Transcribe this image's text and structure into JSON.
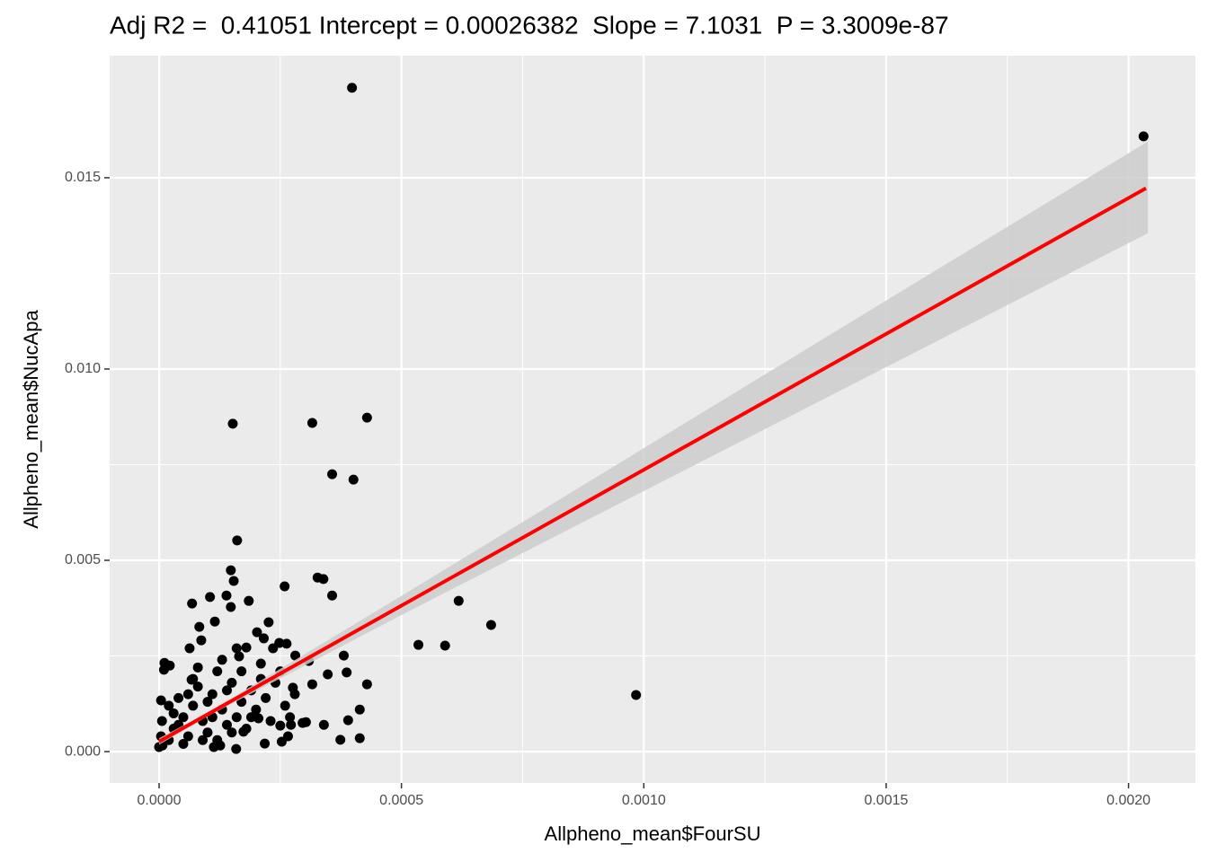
{
  "chart_data": {
    "type": "scatter",
    "title": "Adj R2 =  0.41051 Intercept = 0.00026382  Slope = 7.1031  P = 3.3009e-87",
    "x_label": "Allpheno_mean$FourSU",
    "y_label": "Allpheno_mean$NucApa",
    "xlim": [
      -0.000102,
      0.002138
    ],
    "ylim": [
      -0.00082,
      0.01819
    ],
    "xticks": [
      {
        "value": 0,
        "label": "0.0000"
      },
      {
        "value": 0.0005,
        "label": "0.0005"
      },
      {
        "value": 0.001,
        "label": "0.0010"
      },
      {
        "value": 0.0015,
        "label": "0.0015"
      },
      {
        "value": 0.002,
        "label": "0.0020"
      }
    ],
    "yticks": [
      {
        "value": 0,
        "label": "0.000"
      },
      {
        "value": 0.005,
        "label": "0.005"
      },
      {
        "value": 0.01,
        "label": "0.010"
      },
      {
        "value": 0.015,
        "label": "0.015"
      }
    ],
    "grid": true,
    "color": "#000000",
    "x": [
      0.000398,
      0.002031,
      0.000152,
      0.000316,
      0.000429,
      0.000357,
      0.000401,
      0.000161,
      0.000148,
      0.000154,
      0.000259,
      0.000327,
      0.000339,
      0.000357,
      0.000139,
      0.000185,
      0.000148,
      0.000105,
      6.8e-05,
      0.000618,
      0.000685,
      0.000535,
      0.00059,
      0.000984,
      0.000115,
      0.000226,
      0.000202,
      8.7e-05,
      8.3e-05,
      6.3e-05,
      0.000263,
      0.000248,
      0.000235,
      0.00018,
      0.000165,
      0.000381,
      0.000281,
      0.000309,
      0.000216,
      0.000348,
      0.000387,
      0.000429,
      0.000316,
      0.000276,
      0.000414,
      0.00039,
      0.00034,
      0.000374,
      0.000414,
      0.000303,
      0.000296,
      0.000272,
      0.000253,
      0.000266,
      0.00025,
      0.000218,
      0.000205,
      0.000174,
      0.000159,
      0.000126,
      0.000113,
      1.1e-05,
      2.2e-05,
      1e-05,
      6.7e-05,
      4e-06,
      0,
      7e-06,
      6e-06,
      4e-06,
      3e-05,
      5e-05,
      7e-05,
      9e-05,
      0.00011,
      0.00013,
      0.00015,
      0.00017,
      0.00019,
      0.00021,
      2e-05,
      4e-05,
      6e-05,
      8e-05,
      0.0001,
      0.00012,
      0.00014,
      0.00016,
      0.00018,
      0.0002,
      0.00022,
      0.00024,
      0.00026,
      3e-05,
      5e-05,
      7e-05,
      9e-05,
      0.00011,
      0.00013,
      0.00015,
      0.00017,
      0.00019,
      0.00023,
      0.00025,
      0.00028,
      0.0001,
      6e-05,
      0.00012,
      0.00014,
      8e-05,
      2e-05,
      4e-05,
      0.00016,
      0.00021,
      0.00027
    ],
    "y": [
      0.01735,
      0.01608,
      0.00857,
      0.00859,
      0.00873,
      0.00725,
      0.00711,
      0.00552,
      0.00474,
      0.00446,
      0.00432,
      0.00455,
      0.00451,
      0.00408,
      0.00408,
      0.00394,
      0.00378,
      0.00404,
      0.00387,
      0.00394,
      0.00331,
      0.00279,
      0.00277,
      0.00148,
      0.0034,
      0.00338,
      0.00312,
      0.00291,
      0.00326,
      0.0027,
      0.00282,
      0.00284,
      0.0027,
      0.00272,
      0.00249,
      0.00251,
      0.00251,
      0.00237,
      0.00296,
      0.00202,
      0.00207,
      0.00176,
      0.00176,
      0.00167,
      0.0011,
      0.00082,
      0.0007,
      0.00031,
      0.00035,
      0.00077,
      0.00075,
      0.0007,
      0.00026,
      0.0004,
      0.00068,
      0.00021,
      0.00087,
      0.00052,
      7e-05,
      0.00016,
      0.00012,
      0.00232,
      0.00225,
      0.00214,
      0.00188,
      0.00134,
      0.00012,
      0.00016,
      0.0008,
      0.0004,
      0.0006,
      0.0009,
      0.0012,
      0.0008,
      0.0015,
      0.0011,
      0.0018,
      0.0013,
      0.0016,
      0.0019,
      0.0003,
      0.0014,
      0.0004,
      0.0017,
      0.0005,
      0.0021,
      0.0007,
      0.0009,
      0.0006,
      0.0011,
      0.0014,
      0.0018,
      0.0012,
      0.001,
      0.0002,
      0.0019,
      0.0003,
      0.0009,
      0.0024,
      0.0005,
      0.0021,
      0.0009,
      0.0008,
      0.0021,
      0.0015,
      0.0013,
      0.0015,
      0.0003,
      0.0016,
      0.0022,
      0.0012,
      0.0007,
      0.0027,
      0.0023,
      0.0009
    ],
    "fit": {
      "color": "#ff0000",
      "x": [
        0,
        0.002036
      ],
      "y": [
        0.00026382,
        0.014725
      ]
    },
    "band": {
      "color": "#cccccc",
      "x": [
        0,
        0.0001,
        0.0005,
        0.001,
        0.0015,
        0.00204
      ],
      "lower": [
        0.00018,
        0.00092,
        0.00357,
        0.00681,
        0.01005,
        0.01355
      ],
      "upper": [
        0.00035,
        0.00102,
        0.00407,
        0.00793,
        0.01179,
        0.01595
      ]
    }
  }
}
